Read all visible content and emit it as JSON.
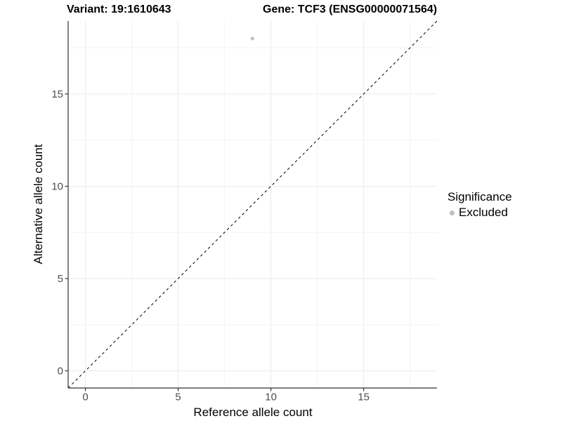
{
  "titles": {
    "variant": "Variant: 19:1610643",
    "gene": "Gene: TCF3 (ENSG00000071564)"
  },
  "legend": {
    "title": "Significance",
    "position": "right",
    "items": [
      {
        "label": "Excluded",
        "color": "#bebebe",
        "marker": "circle"
      }
    ]
  },
  "colors": {
    "background": "#ffffff",
    "grid_major": "#ebebeb",
    "grid_minor": "#f4f4f4",
    "axis_line": "#333333",
    "tick_label": "#4d4d4d",
    "point": "#bebebe",
    "reference_line": "#000000"
  },
  "chart_data": {
    "type": "scatter",
    "title_left": "Variant: 19:1610643",
    "title_right": "Gene: TCF3 (ENSG00000071564)",
    "xlabel": "Reference allele count",
    "ylabel": "Alternative allele count",
    "xlim": [
      -0.93,
      18.95
    ],
    "ylim": [
      -0.93,
      18.95
    ],
    "x_major_ticks": [
      0,
      5,
      10,
      15
    ],
    "y_major_ticks": [
      0,
      5,
      10,
      15
    ],
    "x_minor_ticks": [
      2.5,
      7.5,
      12.5,
      17.5
    ],
    "y_minor_ticks": [
      2.5,
      7.5,
      12.5,
      17.5
    ],
    "grid": true,
    "series": [
      {
        "name": "Excluded",
        "color": "#bebebe",
        "points": [
          {
            "x": 9,
            "y": 18
          }
        ]
      }
    ],
    "reference_line": {
      "kind": "identity",
      "style": "dashed",
      "color": "#000000"
    },
    "legend_position": "right"
  }
}
